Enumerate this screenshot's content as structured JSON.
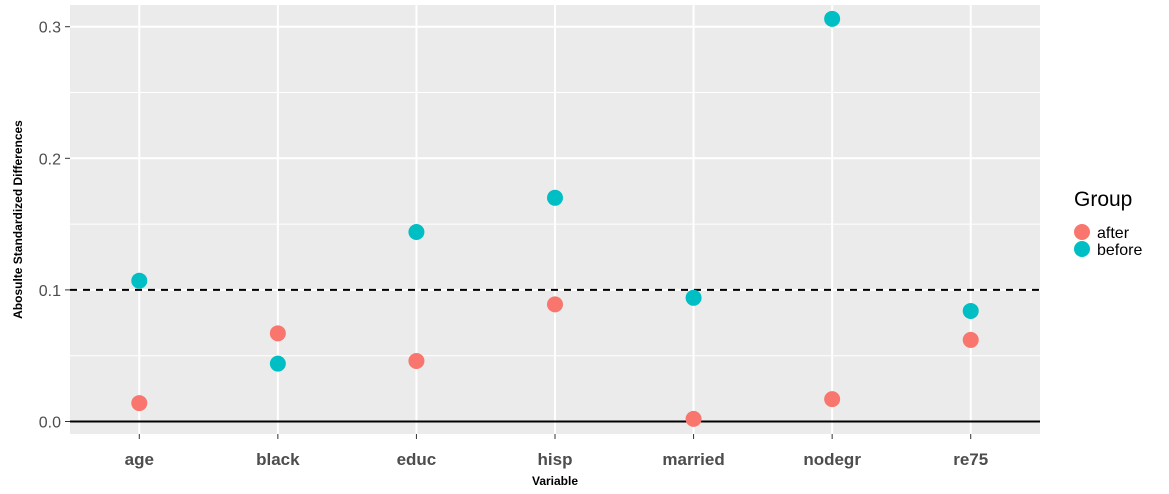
{
  "chart_data": {
    "type": "scatter",
    "categories": [
      "age",
      "black",
      "educ",
      "hisp",
      "married",
      "nodegr",
      "re75"
    ],
    "series": [
      {
        "name": "after",
        "color": "#F8766D",
        "values": [
          0.014,
          0.067,
          0.046,
          0.089,
          0.002,
          0.017,
          0.062
        ]
      },
      {
        "name": "before",
        "color": "#00BFC4",
        "values": [
          0.107,
          0.044,
          0.144,
          0.17,
          0.094,
          0.306,
          0.084
        ]
      }
    ],
    "xlabel": "Variable",
    "ylabel": "Abosulte Standardized Differences",
    "ylim": [
      -0.0095,
      0.3165
    ],
    "yticks": [
      0.0,
      0.1,
      0.2,
      0.3
    ],
    "ytick_labels": [
      "0.0",
      "0.1",
      "0.2",
      "0.3"
    ],
    "reference_lines": [
      {
        "value": 0.1,
        "style": "dashed"
      },
      {
        "value": 0.0,
        "style": "solid"
      }
    ],
    "legend": {
      "title": "Group",
      "position": "right",
      "entries": [
        "after",
        "before"
      ]
    },
    "grid": true,
    "panel_background": "#EBEBEB",
    "grid_color": "#FFFFFF"
  }
}
